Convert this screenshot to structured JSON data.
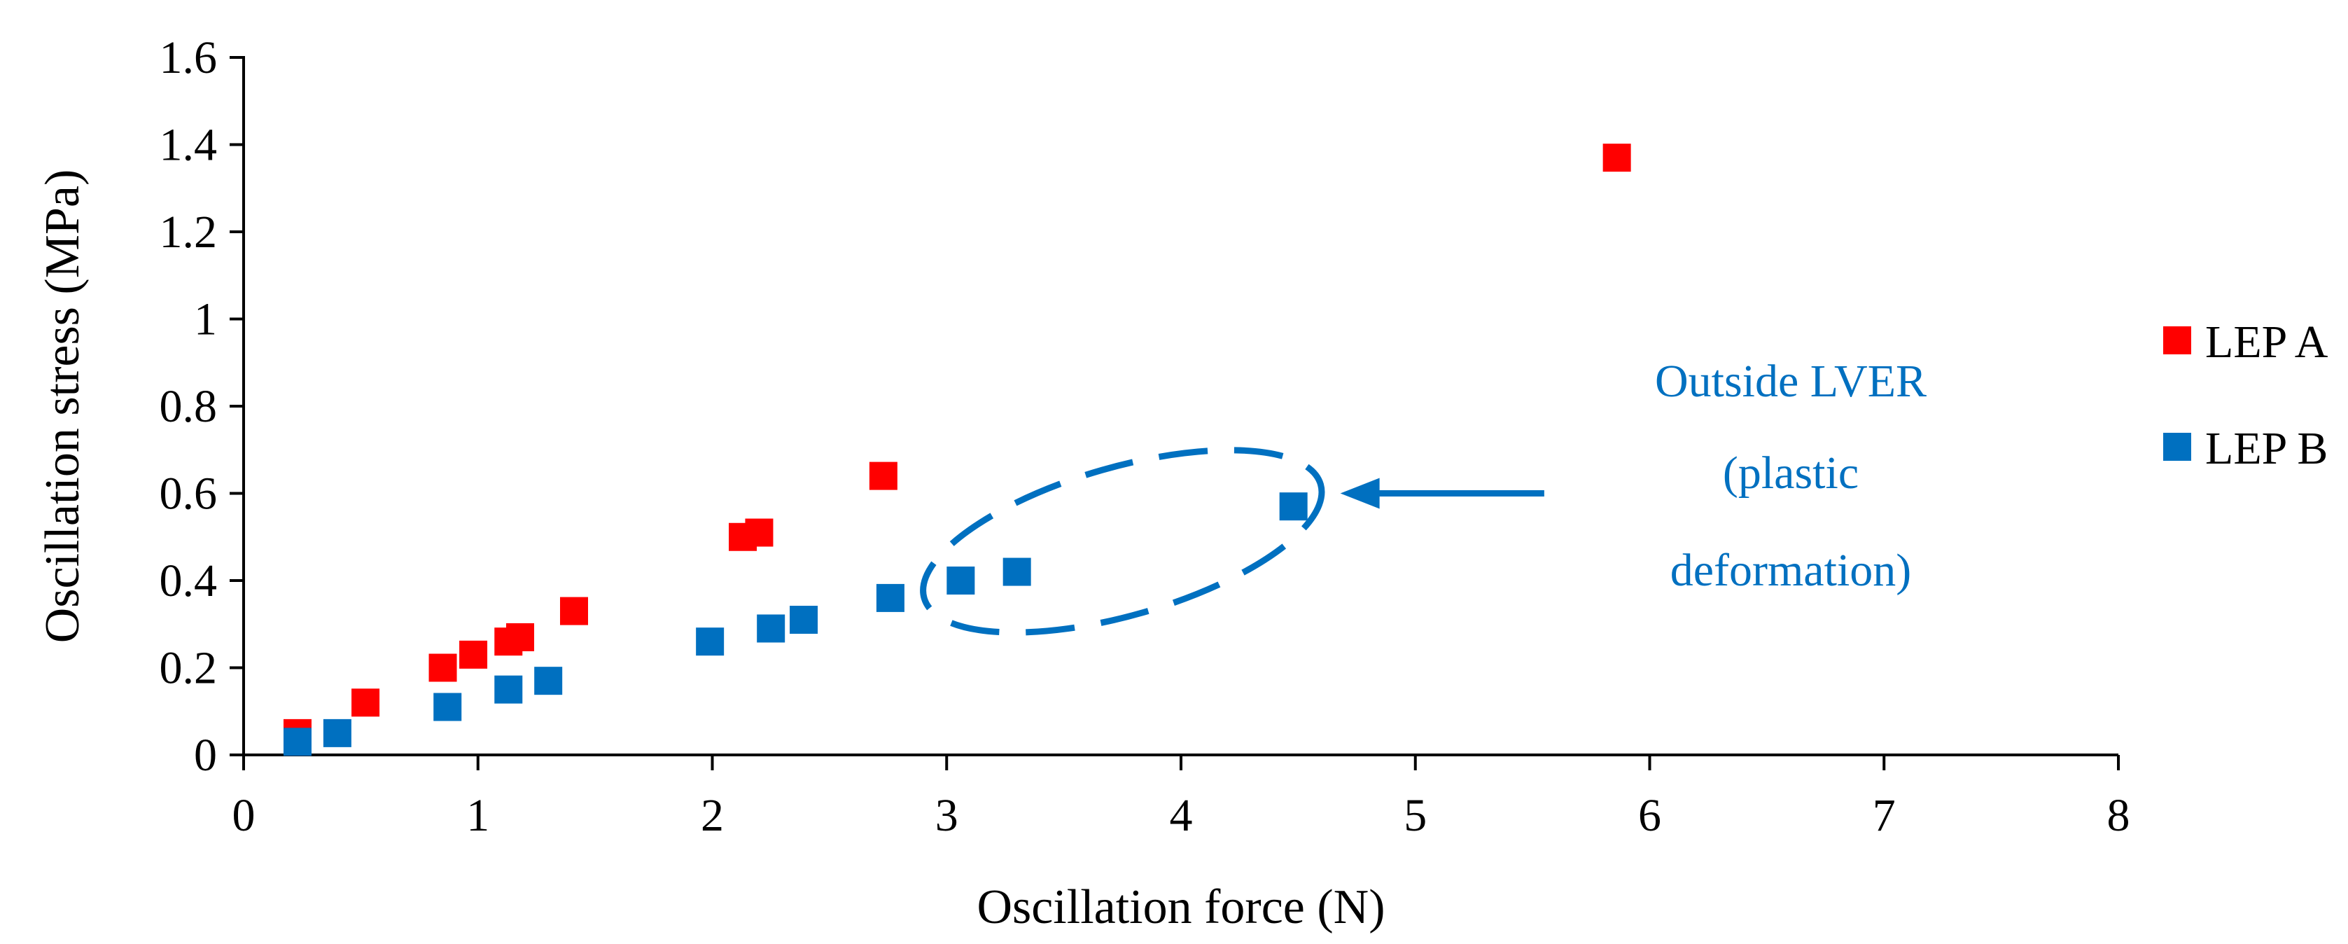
{
  "chart_data": {
    "type": "scatter",
    "title": "",
    "xlabel": "Oscillation force (N)",
    "ylabel": "Oscillation stress (MPa)",
    "xlim": [
      0,
      8
    ],
    "ylim": [
      0,
      1.6
    ],
    "x_ticks": [
      0,
      1,
      2,
      3,
      4,
      5,
      6,
      7,
      8
    ],
    "y_ticks": [
      0,
      0.2,
      0.4,
      0.6,
      0.8,
      1,
      1.2,
      1.4,
      1.6
    ],
    "x_tick_labels": [
      "0",
      "1",
      "2",
      "3",
      "4",
      "5",
      "6",
      "7",
      "8"
    ],
    "y_tick_labels": [
      "0",
      "0.2",
      "0.4",
      "0.6",
      "0.8",
      "1",
      "1.2",
      "1.4",
      "1.6"
    ],
    "grid": false,
    "legend_position": "right",
    "series": [
      {
        "name": "LEP A",
        "color": "#ff0000",
        "marker": "square",
        "x": [
          0.23,
          0.52,
          0.85,
          0.98,
          1.13,
          1.18,
          1.41,
          2.13,
          2.2,
          2.73,
          5.86
        ],
        "y": [
          0.05,
          0.12,
          0.2,
          0.23,
          0.26,
          0.27,
          0.33,
          0.5,
          0.51,
          0.64,
          1.37
        ]
      },
      {
        "name": "LEP B",
        "color": "#0070c0",
        "marker": "square",
        "x": [
          0.23,
          0.4,
          0.87,
          1.13,
          1.3,
          1.99,
          2.25,
          2.39,
          2.76,
          3.06,
          3.3,
          4.48
        ],
        "y": [
          0.03,
          0.05,
          0.11,
          0.15,
          0.17,
          0.26,
          0.29,
          0.31,
          0.36,
          0.4,
          0.42,
          0.57
        ]
      }
    ],
    "annotations": [
      {
        "lines": [
          "Outside LVER",
          "(plastic",
          "deformation)"
        ],
        "color": "#0070c0",
        "ellipse_data": {
          "cx": 3.75,
          "cy": 0.49,
          "rx": 0.88,
          "ry": 0.17
        },
        "arrow_from": [
          5.55,
          0.6
        ],
        "arrow_to": [
          4.68,
          0.6
        ]
      }
    ]
  }
}
